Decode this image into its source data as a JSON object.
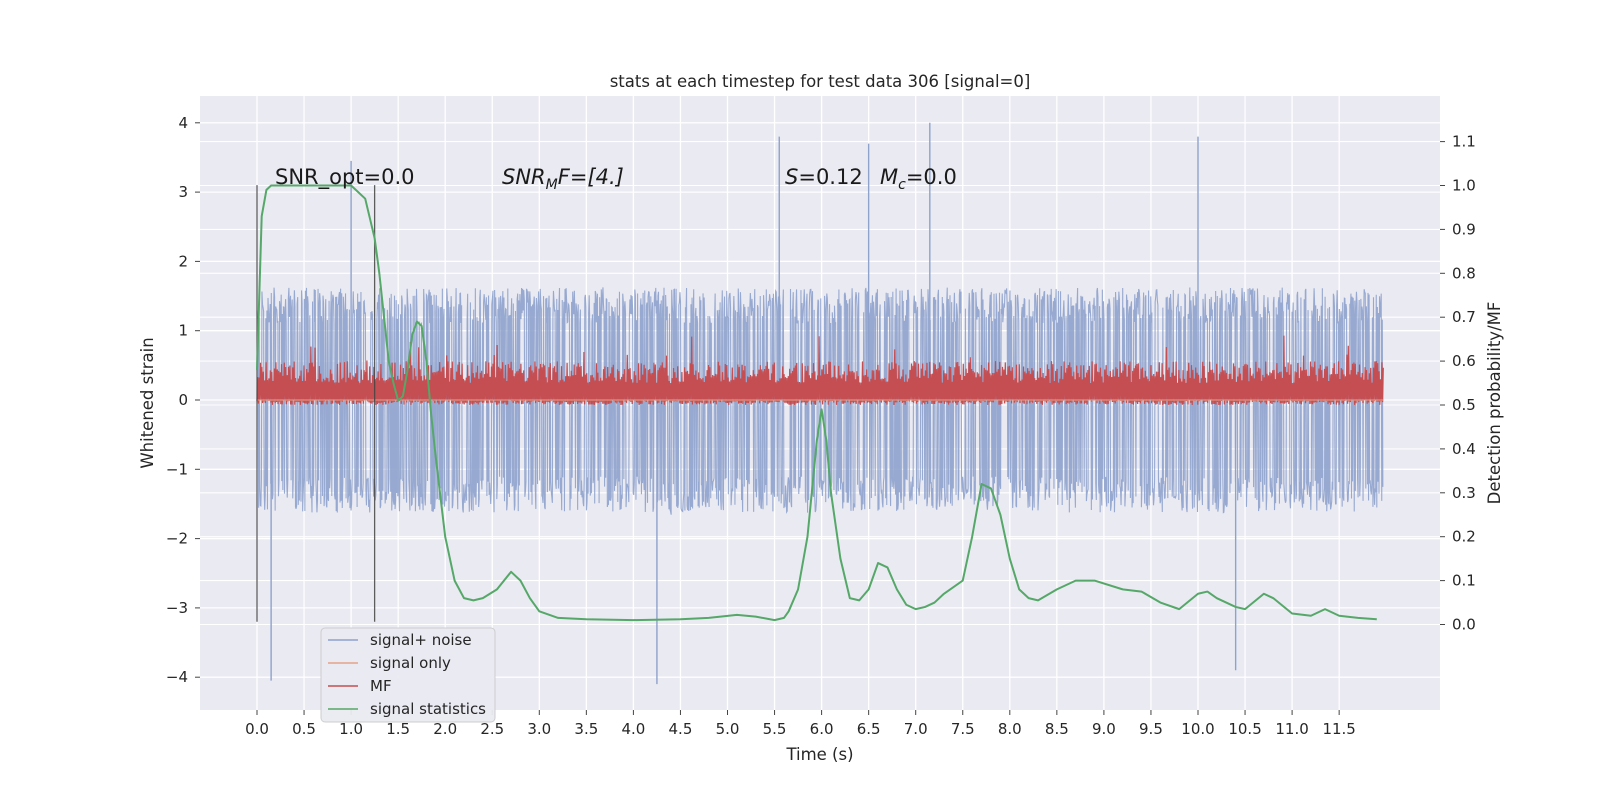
{
  "chart_data": {
    "type": "line",
    "title": "stats at each timestep for test data 306 [signal=0]",
    "xlabel": "Time (s)",
    "ylabel": "Whitened strain",
    "y2label": "Detection probability/MF",
    "xlim": [
      -0.5,
      12.6
    ],
    "ylim": [
      -4.45,
      4.35
    ],
    "y2lim": [
      -0.2,
      1.19
    ],
    "grid": true,
    "legend_position": "lower left",
    "x_ticks": [
      "0.0",
      "0.5",
      "1.0",
      "1.5",
      "2.0",
      "2.5",
      "3.0",
      "3.5",
      "4.0",
      "4.5",
      "5.0",
      "5.5",
      "6.0",
      "6.5",
      "7.0",
      "7.5",
      "8.0",
      "8.5",
      "9.0",
      "9.5",
      "10.0",
      "10.5",
      "11.0",
      "11.5"
    ],
    "y_ticks": [
      "4",
      "3",
      "2",
      "1",
      "0",
      "−1",
      "−2",
      "−3",
      "−4"
    ],
    "y2_ticks": [
      "1.1",
      "1.0",
      "0.9",
      "0.8",
      "0.7",
      "0.6",
      "0.5",
      "0.4",
      "0.3",
      "0.2",
      "0.1",
      "0.0"
    ],
    "annotations": {
      "snr_opt": "SNR_opt=0.0",
      "snr_mf_prefix": "SNR",
      "snr_mf_sub": "M",
      "snr_mf_rest": "F=[4.]",
      "s_label": "S",
      "s_value": "=0.12",
      "mc_label": "M",
      "mc_sub": "c",
      "mc_value": "=0.0"
    },
    "vertical_markers_x": [
      0.0,
      1.25
    ],
    "series": [
      {
        "name": "signal+ noise",
        "color": "#8ea2cc",
        "axis": "left",
        "x_range": [
          0.0,
          11.97
        ],
        "typical_abs_amplitude": 1.3,
        "envelope_min": -3.6,
        "envelope_max": 4.0,
        "notable_peaks": [
          [
            1.0,
            3.45
          ],
          [
            5.55,
            3.8
          ],
          [
            7.15,
            4.0
          ],
          [
            10.0,
            3.8
          ],
          [
            6.5,
            3.7
          ],
          [
            4.25,
            -4.1
          ],
          [
            0.15,
            -4.05
          ],
          [
            10.4,
            -3.9
          ]
        ]
      },
      {
        "name": "signal only",
        "color": "#e8a187",
        "axis": "left",
        "x": [
          0.0,
          11.97
        ],
        "y": [
          0.0,
          0.0
        ]
      },
      {
        "name": "MF",
        "color": "#c44e52",
        "axis": "right",
        "x_range": [
          0.0,
          11.97
        ],
        "y_min": 0.5,
        "y_typical_max": 0.6,
        "y_peak": 0.66
      },
      {
        "name": "signal statistics",
        "color": "#55a868",
        "axis": "right",
        "x": [
          0.0,
          0.05,
          0.1,
          0.15,
          0.25,
          0.4,
          0.6,
          0.8,
          1.0,
          1.05,
          1.15,
          1.25,
          1.3,
          1.35,
          1.4,
          1.45,
          1.5,
          1.55,
          1.6,
          1.65,
          1.7,
          1.75,
          1.8,
          1.85,
          1.9,
          2.0,
          2.1,
          2.2,
          2.3,
          2.4,
          2.55,
          2.7,
          2.8,
          2.9,
          3.0,
          3.2,
          3.5,
          4.0,
          4.5,
          4.8,
          5.1,
          5.3,
          5.5,
          5.6,
          5.65,
          5.75,
          5.85,
          5.95,
          6.0,
          6.05,
          6.1,
          6.2,
          6.3,
          6.4,
          6.5,
          6.6,
          6.7,
          6.8,
          6.9,
          7.0,
          7.1,
          7.2,
          7.3,
          7.5,
          7.6,
          7.7,
          7.8,
          7.85,
          7.9,
          8.0,
          8.1,
          8.2,
          8.3,
          8.5,
          8.7,
          8.9,
          9.2,
          9.4,
          9.6,
          9.8,
          10.0,
          10.1,
          10.2,
          10.4,
          10.5,
          10.7,
          10.8,
          11.0,
          11.2,
          11.35,
          11.5,
          11.7,
          11.9
        ],
        "y": [
          0.58,
          0.93,
          0.99,
          1.0,
          1.0,
          1.0,
          1.0,
          1.0,
          1.0,
          0.99,
          0.97,
          0.88,
          0.8,
          0.7,
          0.6,
          0.55,
          0.51,
          0.52,
          0.58,
          0.66,
          0.69,
          0.68,
          0.6,
          0.48,
          0.38,
          0.2,
          0.1,
          0.06,
          0.055,
          0.06,
          0.08,
          0.12,
          0.1,
          0.06,
          0.03,
          0.015,
          0.012,
          0.01,
          0.012,
          0.015,
          0.022,
          0.018,
          0.01,
          0.015,
          0.03,
          0.08,
          0.2,
          0.42,
          0.49,
          0.42,
          0.3,
          0.15,
          0.06,
          0.055,
          0.08,
          0.14,
          0.13,
          0.08,
          0.045,
          0.035,
          0.04,
          0.05,
          0.07,
          0.1,
          0.2,
          0.32,
          0.31,
          0.28,
          0.25,
          0.15,
          0.08,
          0.06,
          0.055,
          0.08,
          0.1,
          0.1,
          0.08,
          0.075,
          0.05,
          0.035,
          0.07,
          0.075,
          0.06,
          0.04,
          0.035,
          0.07,
          0.06,
          0.025,
          0.02,
          0.035,
          0.02,
          0.015,
          0.012
        ]
      }
    ]
  }
}
